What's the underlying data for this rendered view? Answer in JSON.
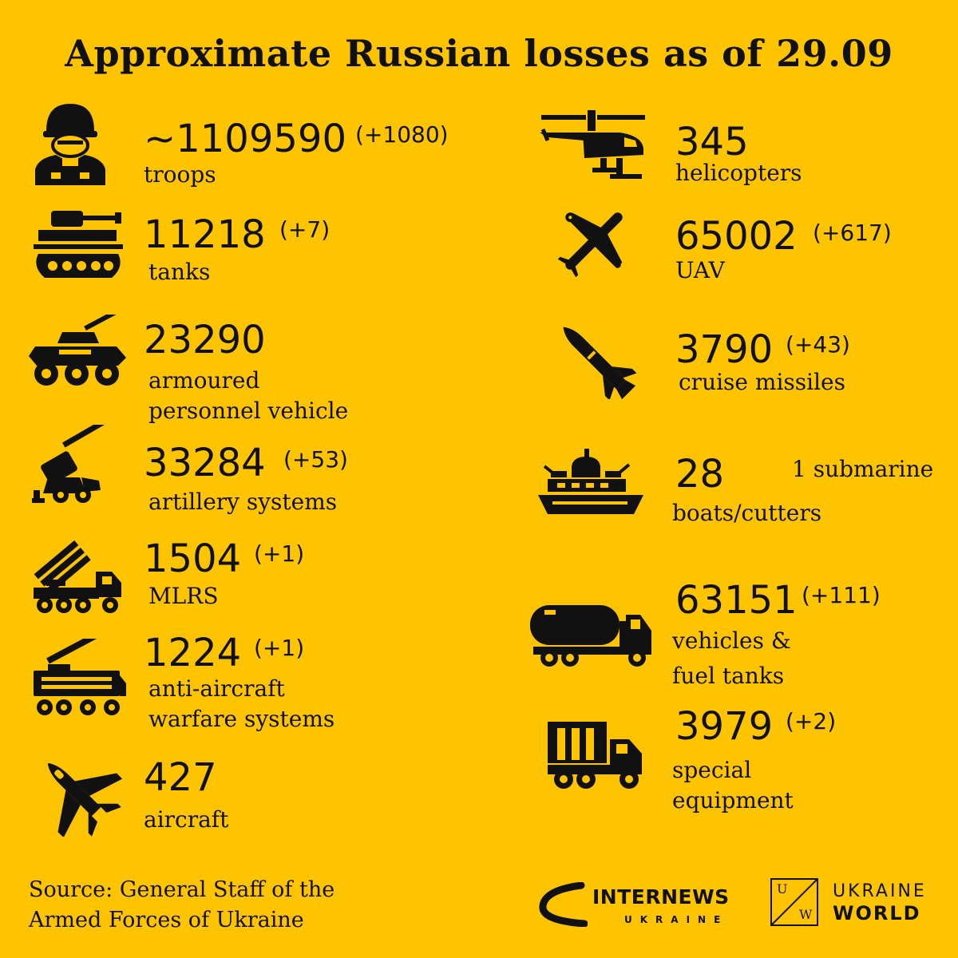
{
  "title": "Approximate Russian losses as of 29.09",
  "colors": {
    "background": "#FFC400",
    "ink": "#111111"
  },
  "left_items": [
    {
      "icon": "soldier-icon",
      "value": "~1109590",
      "delta": "(+1080)",
      "label_lines": [
        "troops"
      ]
    },
    {
      "icon": "tank-icon",
      "value": "11218",
      "delta": "(+7)",
      "label_lines": [
        "tanks"
      ]
    },
    {
      "icon": "apc-icon",
      "value": "23290",
      "delta": "",
      "label_lines": [
        "armoured",
        "personnel vehicle"
      ]
    },
    {
      "icon": "artillery-icon",
      "value": "33284",
      "delta": "(+53)",
      "label_lines": [
        "artillery systems"
      ]
    },
    {
      "icon": "mlrs-icon",
      "value": "1504",
      "delta": "(+1)",
      "label_lines": [
        "MLRS"
      ]
    },
    {
      "icon": "anti-aircraft-icon",
      "value": "1224",
      "delta": "(+1)",
      "label_lines": [
        "anti-aircraft",
        "warfare systems"
      ]
    },
    {
      "icon": "jet-icon",
      "value": "427",
      "delta": "",
      "label_lines": [
        "aircraft"
      ]
    }
  ],
  "right_items": [
    {
      "icon": "helicopter-icon",
      "value": "345",
      "delta": "",
      "label_lines": [
        "helicopters"
      ]
    },
    {
      "icon": "drone-icon",
      "value": "65002",
      "delta": "(+617)",
      "label_lines": [
        "UAV"
      ]
    },
    {
      "icon": "missile-icon",
      "value": "3790",
      "delta": "(+43)",
      "label_lines": [
        "cruise missiles"
      ]
    },
    {
      "icon": "ship-icon",
      "value": "28",
      "delta": "1 submarine",
      "label_lines": [
        "boats/cutters"
      ]
    },
    {
      "icon": "fuel-truck-icon",
      "value": "63151",
      "delta": "(+111)",
      "label_lines": [
        "vehicles &",
        "fuel tanks"
      ]
    },
    {
      "icon": "truck-icon",
      "value": "3979",
      "delta": "(+2)",
      "label_lines": [
        "special",
        "equipment"
      ]
    }
  ],
  "source": {
    "line1": "Source: General Staff of the",
    "line2": "Armed Forces of Ukraine"
  },
  "logos": {
    "internews_name": "INTERNEWS",
    "internews_sub": "UKRAINE",
    "uw_mark_left": "U",
    "uw_mark_right": "W",
    "uw_line1": "UKRAINE",
    "uw_line2": "WORLD"
  }
}
